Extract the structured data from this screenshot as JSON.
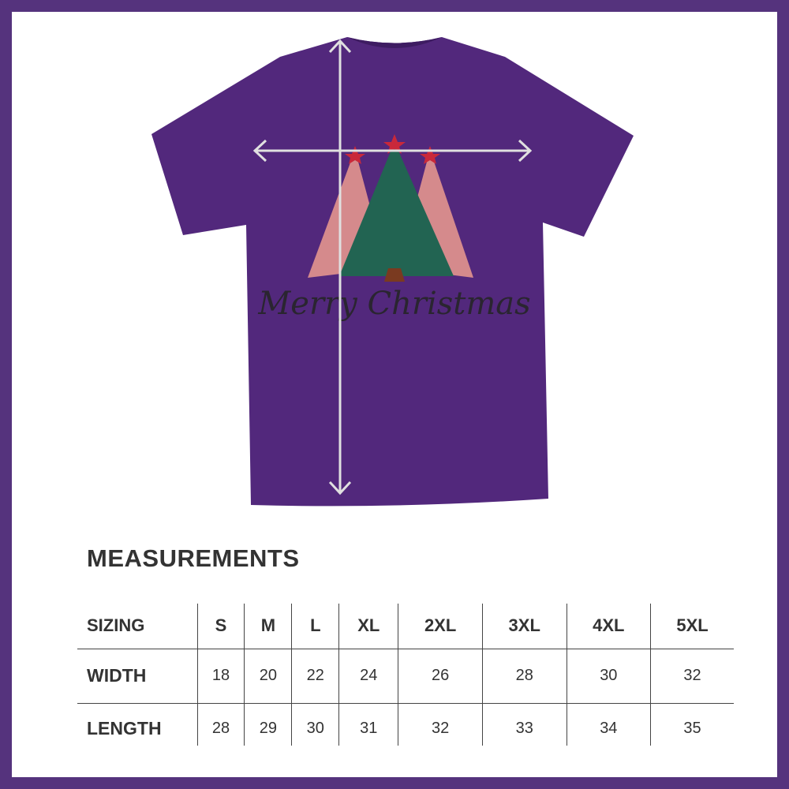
{
  "image": {
    "product": "purple t-shirt",
    "print_text": "Merry Christmas",
    "shirt_color": "#52287c",
    "frame_color": "#55337d"
  },
  "measurements": {
    "title": "MEASUREMENTS",
    "header": [
      "SIZING",
      "S",
      "M",
      "L",
      "XL",
      "2XL",
      "3XL",
      "4XL",
      "5XL"
    ],
    "rows": [
      {
        "label": "WIDTH",
        "values": [
          "18",
          "20",
          "22",
          "24",
          "26",
          "28",
          "30",
          "32"
        ]
      },
      {
        "label": "LENGTH",
        "values": [
          "28",
          "29",
          "30",
          "31",
          "32",
          "33",
          "34",
          "35"
        ]
      }
    ]
  }
}
